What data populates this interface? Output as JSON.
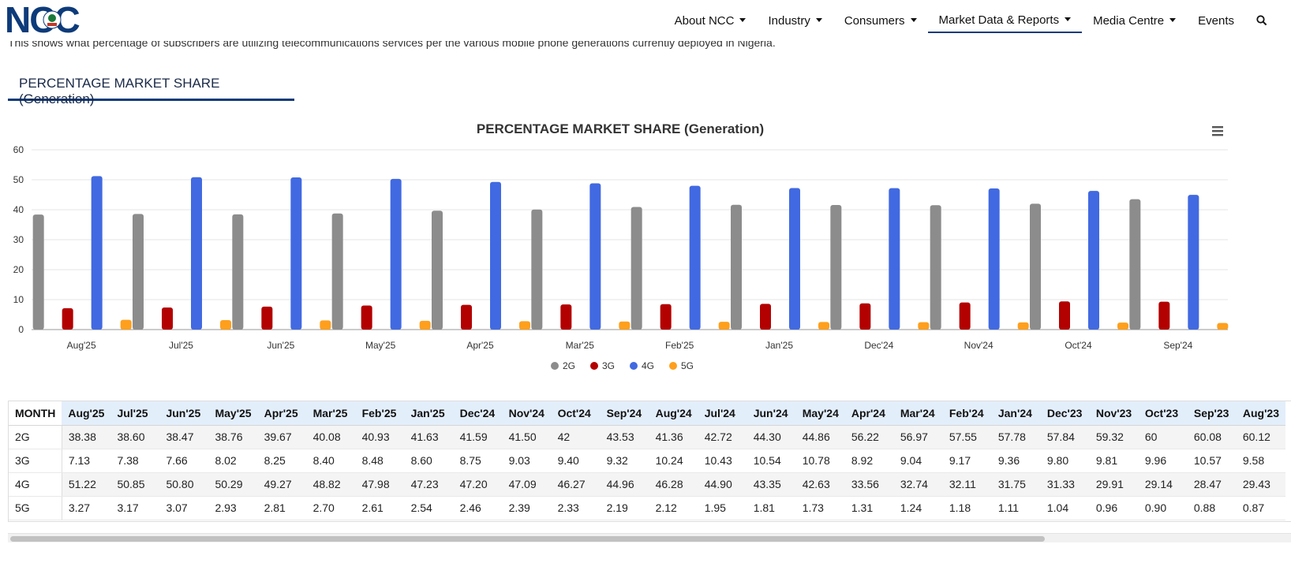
{
  "header": {
    "logo_text": "NCC",
    "nav": [
      {
        "label": "About NCC",
        "dropdown": true,
        "active": false
      },
      {
        "label": "Industry",
        "dropdown": true,
        "active": false
      },
      {
        "label": "Consumers",
        "dropdown": true,
        "active": false
      },
      {
        "label": "Market Data & Reports",
        "dropdown": true,
        "active": true
      },
      {
        "label": "Media Centre",
        "dropdown": true,
        "active": false
      },
      {
        "label": "Events",
        "dropdown": false,
        "active": false
      }
    ],
    "search_icon": "search-icon"
  },
  "intro_text": "This shows what percentage of subscribers are utilizing telecommunications services per the various mobile phone generations currently deployed in Nigeria.",
  "tab": {
    "label": "PERCENTAGE MARKET SHARE (Generation)"
  },
  "colors": {
    "2G": "#8c8c8c",
    "3G": "#b30000",
    "4G": "#4169e1",
    "5G": "#ff9f1c",
    "accent": "#0d3b7a",
    "header_blue": "#e3eefb"
  },
  "chart_data": {
    "type": "bar",
    "title": "PERCENTAGE MARKET SHARE (Generation)",
    "xlabel": "",
    "ylabel": "",
    "ylim": [
      0,
      60
    ],
    "yticks": [
      0,
      10,
      20,
      30,
      40,
      50,
      60
    ],
    "grid": true,
    "legend_position": "bottom-center",
    "categories": [
      "Aug'25",
      "Jul'25",
      "Jun'25",
      "May'25",
      "Apr'25",
      "Mar'25",
      "Feb'25",
      "Jan'25",
      "Dec'24",
      "Nov'24",
      "Oct'24",
      "Sep'24"
    ],
    "series": [
      {
        "name": "2G",
        "values": [
          38.38,
          38.6,
          38.47,
          38.76,
          39.67,
          40.08,
          40.93,
          41.63,
          41.59,
          41.5,
          42,
          43.53
        ]
      },
      {
        "name": "3G",
        "values": [
          7.13,
          7.38,
          7.66,
          8.02,
          8.25,
          8.4,
          8.48,
          8.6,
          8.75,
          9.03,
          9.4,
          9.32
        ]
      },
      {
        "name": "4G",
        "values": [
          51.22,
          50.85,
          50.8,
          50.29,
          49.27,
          48.82,
          47.98,
          47.23,
          47.2,
          47.09,
          46.27,
          44.96
        ]
      },
      {
        "name": "5G",
        "values": [
          3.27,
          3.17,
          3.07,
          2.93,
          2.81,
          2.7,
          2.61,
          2.54,
          2.46,
          2.39,
          2.33,
          2.19
        ]
      }
    ],
    "menu_icon": "hamburger-menu-icon"
  },
  "table": {
    "corner": "MONTH",
    "columns": [
      "Aug'25",
      "Jul'25",
      "Jun'25",
      "May'25",
      "Apr'25",
      "Mar'25",
      "Feb'25",
      "Jan'25",
      "Dec'24",
      "Nov'24",
      "Oct'24",
      "Sep'24",
      "Aug'24",
      "Jul'24",
      "Jun'24",
      "May'24",
      "Apr'24",
      "Mar'24",
      "Feb'24",
      "Jan'24",
      "Dec'23",
      "Nov'23",
      "Oct'23",
      "Sep'23",
      "Aug'23"
    ],
    "rows": [
      {
        "label": "2G",
        "values": [
          "38.38",
          "38.60",
          "38.47",
          "38.76",
          "39.67",
          "40.08",
          "40.93",
          "41.63",
          "41.59",
          "41.50",
          "42",
          "43.53",
          "41.36",
          "42.72",
          "44.30",
          "44.86",
          "56.22",
          "56.97",
          "57.55",
          "57.78",
          "57.84",
          "59.32",
          "60",
          "60.08",
          "60.12"
        ]
      },
      {
        "label": "3G",
        "values": [
          "7.13",
          "7.38",
          "7.66",
          "8.02",
          "8.25",
          "8.40",
          "8.48",
          "8.60",
          "8.75",
          "9.03",
          "9.40",
          "9.32",
          "10.24",
          "10.43",
          "10.54",
          "10.78",
          "8.92",
          "9.04",
          "9.17",
          "9.36",
          "9.80",
          "9.81",
          "9.96",
          "10.57",
          "9.58"
        ]
      },
      {
        "label": "4G",
        "values": [
          "51.22",
          "50.85",
          "50.80",
          "50.29",
          "49.27",
          "48.82",
          "47.98",
          "47.23",
          "47.20",
          "47.09",
          "46.27",
          "44.96",
          "46.28",
          "44.90",
          "43.35",
          "42.63",
          "33.56",
          "32.74",
          "32.11",
          "31.75",
          "31.33",
          "29.91",
          "29.14",
          "28.47",
          "29.43"
        ]
      },
      {
        "label": "5G",
        "values": [
          "3.27",
          "3.17",
          "3.07",
          "2.93",
          "2.81",
          "2.70",
          "2.61",
          "2.54",
          "2.46",
          "2.39",
          "2.33",
          "2.19",
          "2.12",
          "1.95",
          "1.81",
          "1.73",
          "1.31",
          "1.24",
          "1.18",
          "1.11",
          "1.04",
          "0.96",
          "0.90",
          "0.88",
          "0.87"
        ]
      }
    ]
  }
}
